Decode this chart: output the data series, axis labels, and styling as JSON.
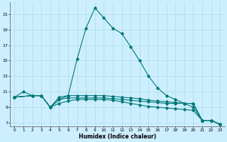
{
  "xlabel": "Humidex (Indice chaleur)",
  "bg_color": "#cceeff",
  "grid_color": "#aadddd",
  "line_color": "#007777",
  "xlim": [
    -0.5,
    23.5
  ],
  "ylim": [
    6.5,
    22.5
  ],
  "yticks": [
    7,
    9,
    11,
    13,
    15,
    17,
    19,
    21
  ],
  "xticks": [
    0,
    1,
    2,
    3,
    4,
    5,
    6,
    7,
    8,
    9,
    10,
    11,
    12,
    13,
    14,
    15,
    16,
    17,
    18,
    19,
    20,
    21,
    22,
    23
  ],
  "lines": [
    {
      "x": [
        0,
        1,
        2,
        3,
        4,
        5,
        6,
        7,
        8,
        9,
        10,
        11,
        12,
        13,
        14,
        15,
        16,
        17,
        18,
        19,
        20,
        21,
        22,
        23
      ],
      "y": [
        10.3,
        11.0,
        10.5,
        10.5,
        9.0,
        10.0,
        10.5,
        15.2,
        19.2,
        21.8,
        20.5,
        19.2,
        18.5,
        16.8,
        15.0,
        13.0,
        11.5,
        10.5,
        10.0,
        9.5,
        9.0,
        7.3,
        7.3,
        6.8
      ]
    },
    {
      "x": [
        0,
        2,
        3,
        4,
        5,
        6,
        7,
        8,
        9,
        10,
        11,
        12,
        13,
        14,
        15,
        16,
        17,
        18,
        19,
        20,
        21,
        22,
        23
      ],
      "y": [
        10.3,
        10.5,
        10.5,
        9.0,
        10.3,
        10.5,
        10.5,
        10.5,
        10.5,
        10.5,
        10.4,
        10.3,
        10.2,
        10.1,
        9.9,
        9.8,
        9.7,
        9.6,
        9.5,
        9.5,
        7.3,
        7.3,
        6.8
      ]
    },
    {
      "x": [
        0,
        2,
        3,
        4,
        5,
        6,
        7,
        8,
        9,
        10,
        11,
        12,
        13,
        14,
        15,
        16,
        17,
        18,
        19,
        20,
        21,
        22,
        23
      ],
      "y": [
        10.3,
        10.5,
        10.5,
        9.0,
        10.0,
        10.2,
        10.2,
        10.2,
        10.2,
        10.2,
        10.1,
        10.0,
        9.9,
        9.8,
        9.7,
        9.6,
        9.5,
        9.5,
        9.5,
        9.5,
        7.3,
        7.3,
        6.8
      ]
    },
    {
      "x": [
        0,
        2,
        3,
        4,
        5,
        6,
        7,
        8,
        9,
        10,
        11,
        12,
        13,
        14,
        15,
        16,
        17,
        18,
        19,
        20,
        21,
        22,
        23
      ],
      "y": [
        10.3,
        10.5,
        10.5,
        9.0,
        9.5,
        9.8,
        10.0,
        10.0,
        10.0,
        10.0,
        9.9,
        9.7,
        9.5,
        9.3,
        9.1,
        9.0,
        8.9,
        8.8,
        8.7,
        8.6,
        7.3,
        7.3,
        6.8
      ]
    }
  ]
}
